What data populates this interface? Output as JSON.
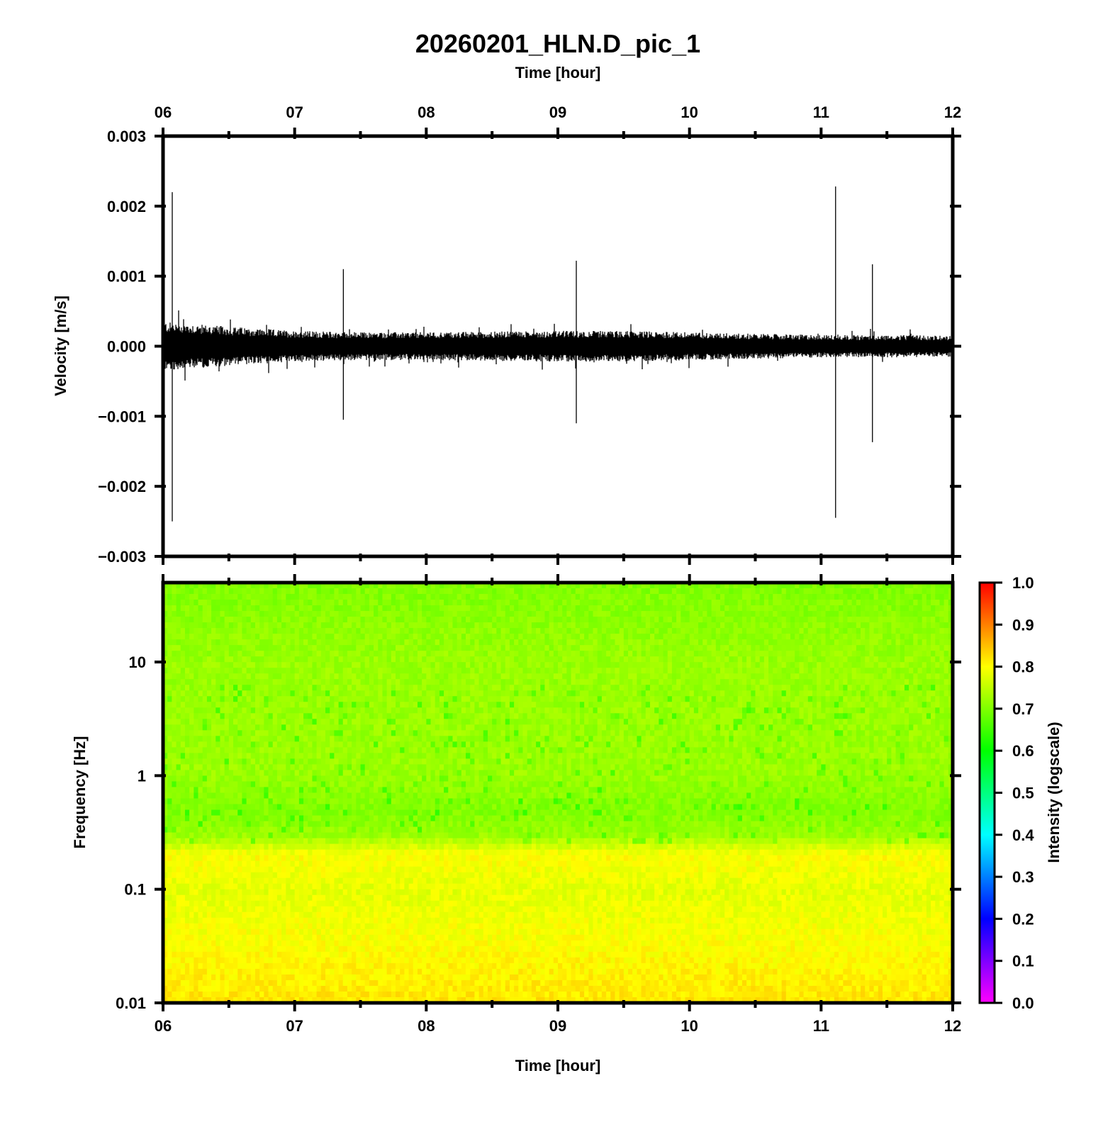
{
  "chart_data": [
    {
      "type": "line",
      "title": "20260201_HLN.D_pic_1",
      "xlabel": "Time [hour]",
      "ylabel": "Velocity [m/s]",
      "xlim": [
        6,
        12
      ],
      "ylim": [
        -0.003,
        0.003
      ],
      "x_tick_labels": [
        "06",
        "07",
        "08",
        "09",
        "10",
        "11",
        "12"
      ],
      "y_tick_labels": [
        "0.003",
        "0.002",
        "0.001",
        "0.000",
        "−0.001",
        "−0.002",
        "−0.003"
      ],
      "y_ticks": [
        0.003,
        0.002,
        0.001,
        0.0,
        -0.001,
        -0.002,
        -0.003
      ],
      "noise_envelope": {
        "x": [
          6.0,
          6.5,
          7.0,
          7.5,
          8.0,
          8.5,
          9.0,
          9.5,
          10.0,
          10.5,
          11.0,
          11.5,
          12.0
        ],
        "upper": [
          0.00035,
          0.00028,
          0.00022,
          0.0002,
          0.0002,
          0.00021,
          0.00022,
          0.00022,
          0.0002,
          0.00018,
          0.00016,
          0.00016,
          0.00015
        ],
        "lower": [
          -0.00035,
          -0.00028,
          -0.00022,
          -0.0002,
          -0.0002,
          -0.00021,
          -0.00022,
          -0.00022,
          -0.0002,
          -0.00018,
          -0.00016,
          -0.00016,
          -0.00015
        ]
      },
      "spikes": [
        {
          "x": 6.07,
          "max": 0.0022,
          "min": -0.0025
        },
        {
          "x": 7.37,
          "max": 0.0011,
          "min": -0.00105
        },
        {
          "x": 9.14,
          "max": 0.00122,
          "min": -0.0011
        },
        {
          "x": 11.11,
          "max": 0.00228,
          "min": -0.00245
        },
        {
          "x": 11.39,
          "max": 0.00117,
          "min": -0.00137
        }
      ],
      "grid": false
    },
    {
      "type": "heatmap",
      "xlabel": "Time [hour]",
      "ylabel": "Frequency [Hz]",
      "xlim": [
        6,
        12
      ],
      "ylim": [
        0.01,
        50
      ],
      "yscale": "log",
      "x_tick_labels": [
        "06",
        "07",
        "08",
        "09",
        "10",
        "11",
        "12"
      ],
      "y_tick_labels": [
        "10",
        "1",
        "0.1",
        "0.01"
      ],
      "y_ticks": [
        10,
        1,
        0.1,
        0.01
      ],
      "intensity_profile": {
        "frequency_hz": [
          0.01,
          0.03,
          0.1,
          0.2,
          0.3,
          0.5,
          1,
          3,
          10,
          50
        ],
        "intensity": [
          0.82,
          0.8,
          0.78,
          0.8,
          0.72,
          0.7,
          0.72,
          0.72,
          0.72,
          0.7
        ]
      },
      "colorbar": {
        "label": "Intensity (logscale)",
        "range": [
          0.0,
          1.0
        ],
        "tick_labels": [
          "1.0",
          "0.9",
          "0.8",
          "0.7",
          "0.6",
          "0.5",
          "0.4",
          "0.3",
          "0.2",
          "0.1",
          "0.0"
        ],
        "ticks": [
          1.0,
          0.9,
          0.8,
          0.7,
          0.6,
          0.5,
          0.4,
          0.3,
          0.2,
          0.1,
          0.0
        ],
        "colormap": [
          "#ff00ff",
          "#0000ff",
          "#00ffff",
          "#00ff00",
          "#ffff00",
          "#ff0000"
        ]
      },
      "grid": false
    }
  ]
}
